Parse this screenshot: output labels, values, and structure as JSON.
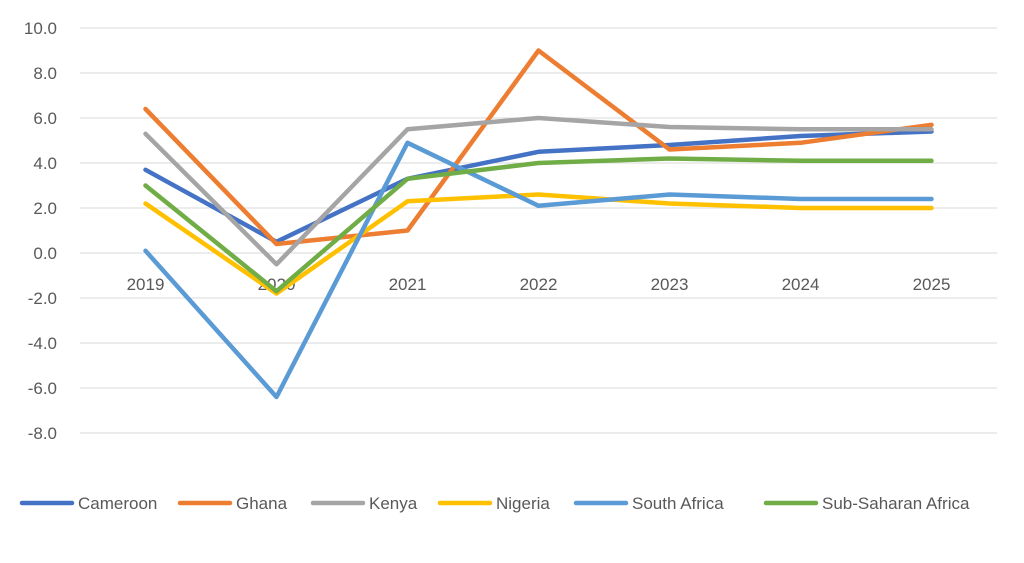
{
  "chart_data": {
    "type": "line",
    "title": "",
    "xlabel": "",
    "ylabel": "",
    "categories": [
      "2019",
      "2020",
      "2021",
      "2022",
      "2023",
      "2024",
      "2025"
    ],
    "ylim": [
      -8,
      10
    ],
    "yticks": [
      10,
      8,
      6,
      4,
      2,
      0,
      -2,
      -4,
      -6,
      -8
    ],
    "ytick_labels": [
      "10.0",
      "8.0",
      "6.0",
      "4.0",
      "2.0",
      "0.0",
      "-2.0",
      "-4.0",
      "-6.0",
      "-8.0"
    ],
    "grid": true,
    "legend": "bottom",
    "series": [
      {
        "name": "Cameroon",
        "color": "#4472C4",
        "values": [
          3.7,
          0.5,
          3.3,
          4.5,
          4.8,
          5.2,
          5.4
        ]
      },
      {
        "name": "Ghana",
        "color": "#ED7D31",
        "values": [
          6.4,
          0.4,
          1.0,
          9.0,
          4.6,
          4.9,
          5.7
        ]
      },
      {
        "name": "Kenya",
        "color": "#A5A5A5",
        "values": [
          5.3,
          -0.5,
          5.5,
          6.0,
          5.6,
          5.5,
          5.5
        ]
      },
      {
        "name": "Nigeria",
        "color": "#FFC000",
        "values": [
          2.2,
          -1.8,
          2.3,
          2.6,
          2.2,
          2.0,
          2.0
        ]
      },
      {
        "name": "South Africa",
        "color": "#5B9BD5",
        "values": [
          0.1,
          -6.4,
          4.9,
          2.1,
          2.6,
          2.4,
          2.4
        ]
      },
      {
        "name": "Sub-Saharan Africa",
        "color": "#70AD47",
        "values": [
          3.0,
          -1.7,
          3.3,
          4.0,
          4.2,
          4.1,
          4.1
        ]
      }
    ]
  }
}
